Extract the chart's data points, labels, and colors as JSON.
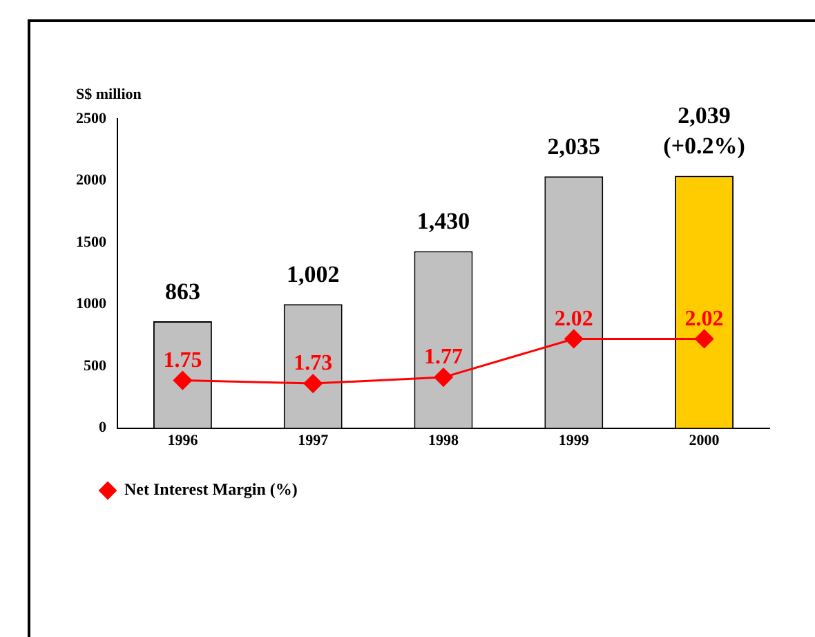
{
  "chart_data": {
    "type": "bar",
    "ylabel": "S$ million",
    "categories": [
      "1996",
      "1997",
      "1998",
      "1999",
      "2000"
    ],
    "series": [
      {
        "colors": [
          "#c0c0c0",
          "#c0c0c0",
          "#c0c0c0",
          "#c0c0c0",
          "#ffcc00"
        ],
        "values": [
          863,
          1002,
          1430,
          2035,
          2039
        ],
        "value_labels": [
          "863",
          "1,002",
          "1,430",
          "2,035",
          "2,039\n(+0.2%)"
        ]
      },
      {
        "type": "line",
        "name": "Net Interest Margin (%)",
        "color": "#ff0000",
        "axis": "y2",
        "values": [
          1.75,
          1.73,
          1.77,
          2.02,
          2.02
        ],
        "value_labels": [
          "1.75",
          "1.73",
          "1.77",
          "2.02",
          "2.02"
        ]
      }
    ],
    "ylim": [
      0,
      2500
    ],
    "yticks": [
      0,
      500,
      1000,
      1500,
      2000,
      2500
    ],
    "y2lim": [
      1.44,
      3.45
    ],
    "grid": false,
    "legend": "bottom left",
    "marker": "diamond",
    "line_style": "solid"
  }
}
